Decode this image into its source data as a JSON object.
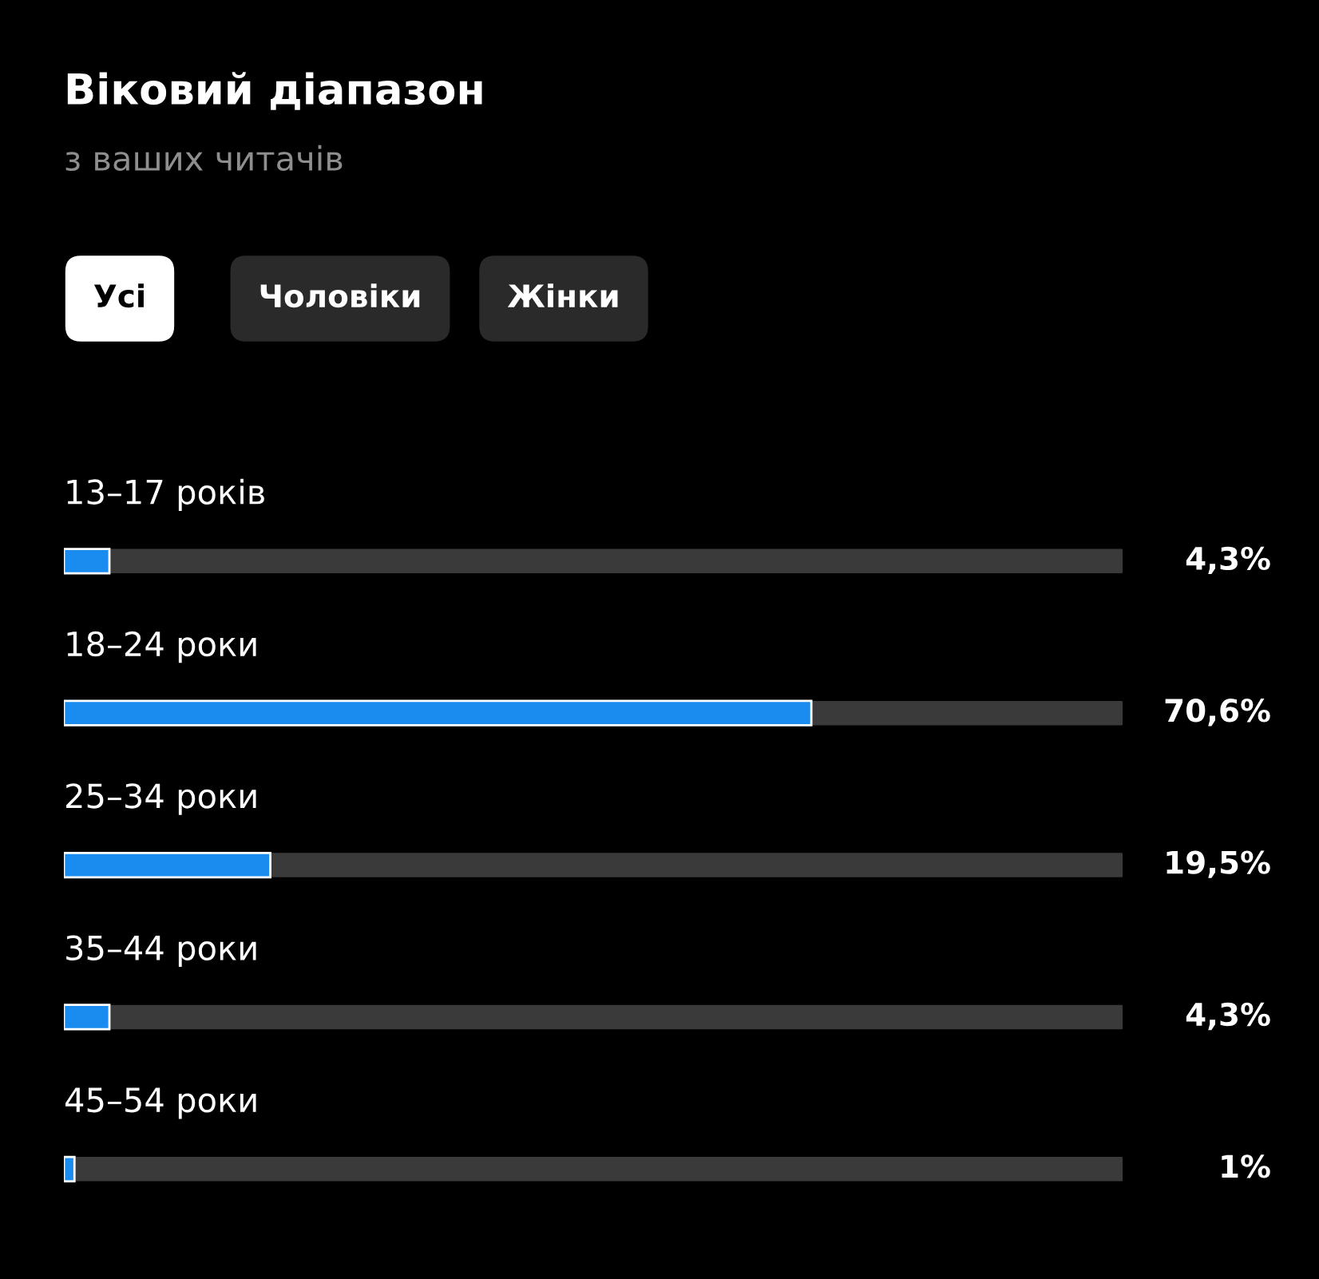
{
  "chart_data": {
    "type": "bar",
    "orientation": "horizontal",
    "title": "Віковий діапазон",
    "subtitle": "з ваших читачів",
    "annotations": [
      "Усі",
      "Чоловіки",
      "Жінки"
    ],
    "categories": [
      "13–17 років",
      "18–24 роки",
      "25–34 роки",
      "35–44 роки",
      "45–54 роки"
    ],
    "values": [
      4.3,
      70.6,
      19.5,
      4.3,
      1
    ],
    "value_labels": [
      "4,3%",
      "70,6%",
      "19,5%",
      "4,3%",
      "1%"
    ],
    "color": "#1a8cf0",
    "xlim": [
      0,
      100
    ],
    "tick_labels": false
  }
}
